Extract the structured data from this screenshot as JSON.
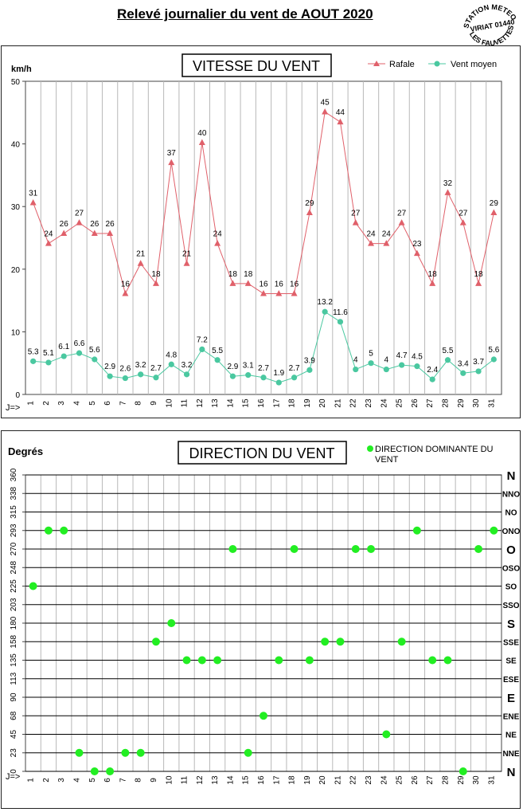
{
  "header": {
    "title": "Relevé journalier du vent de AOUT 2020",
    "stamp_lines": [
      "STATION METEO",
      "VIRIAT 01440",
      "LES FAUVETTES"
    ]
  },
  "chart_data": [
    {
      "type": "line",
      "title": "VITESSE DU VENT",
      "ylabel": "km/h",
      "xlabel": "J=>",
      "ylim": [
        0,
        50
      ],
      "yticks": [
        0,
        10,
        20,
        30,
        40,
        50
      ],
      "grid": true,
      "legend": "top-right",
      "categories": [
        1,
        2,
        3,
        4,
        5,
        6,
        7,
        8,
        9,
        10,
        11,
        12,
        13,
        14,
        15,
        16,
        17,
        18,
        19,
        20,
        21,
        22,
        23,
        24,
        25,
        26,
        27,
        28,
        29,
        30,
        31
      ],
      "series": [
        {
          "name": "Rafale",
          "color": "#e0606a",
          "marker": "triangle",
          "values": [
            30.6,
            24.1,
            25.7,
            27.4,
            25.7,
            25.7,
            16.1,
            20.9,
            17.7,
            37.0,
            20.9,
            40.2,
            24.1,
            17.7,
            17.7,
            16.1,
            16.1,
            16.1,
            29.0,
            45.1,
            43.5,
            27.4,
            24.1,
            24.1,
            27.4,
            22.5,
            17.7,
            32.2,
            27.4,
            17.7,
            29.0
          ],
          "labels": [
            "31",
            "24",
            "26",
            "27",
            "26",
            "26",
            "16",
            "21",
            "18",
            "37",
            "21",
            "40",
            "24",
            "18",
            "18",
            "16",
            "16",
            "16",
            "29",
            "45",
            "44",
            "27",
            "24",
            "24",
            "27",
            "23",
            "18",
            "32",
            "27",
            "18",
            "29"
          ]
        },
        {
          "name": "Vent moyen",
          "color": "#4ac8a0",
          "marker": "circle",
          "values": [
            5.3,
            5.1,
            6.1,
            6.6,
            5.6,
            2.9,
            2.6,
            3.2,
            2.7,
            4.8,
            3.2,
            7.2,
            5.5,
            2.9,
            3.1,
            2.7,
            1.9,
            2.7,
            3.9,
            13.2,
            11.6,
            4,
            5,
            4,
            4.7,
            4.5,
            2.4,
            5.5,
            3.4,
            3.7,
            5.6
          ],
          "labels": [
            "5.3",
            "5.1",
            "6.1",
            "6.6",
            "5.6",
            "2.9",
            "2.6",
            "3.2",
            "2.7",
            "4.8",
            "3.2",
            "7.2",
            "5.5",
            "2.9",
            "3.1",
            "2.7",
            "1.9",
            "2.7",
            "3.9",
            "13.2",
            "11.6",
            "4",
            "5",
            "4",
            "4.7",
            "4.5",
            "2.4",
            "5.5",
            "3.4",
            "3.7",
            "5.6"
          ]
        }
      ]
    },
    {
      "type": "scatter",
      "title": "DIRECTION DU VENT",
      "ylabel": "Degrés",
      "xlabel": "J=>",
      "ylim": [
        0,
        360
      ],
      "yticks": [
        "0",
        "23",
        "45",
        "68",
        "90",
        "113",
        "135",
        "158",
        "180",
        "203",
        "225",
        "248",
        "270",
        "293",
        "315",
        "338",
        "360"
      ],
      "ytick_values": [
        0,
        22.5,
        45,
        67.5,
        90,
        112.5,
        135,
        157.5,
        180,
        202.5,
        225,
        247.5,
        270,
        292.5,
        315,
        337.5,
        360
      ],
      "compass": [
        "N",
        "NNE",
        "NE",
        "ENE",
        "E",
        "ESE",
        "SE",
        "SSE",
        "S",
        "SSO",
        "SO",
        "OSO",
        "O",
        "ONO",
        "NO",
        "NNO",
        "N"
      ],
      "grid": true,
      "legend": "top-right",
      "categories": [
        1,
        2,
        3,
        4,
        5,
        6,
        7,
        8,
        9,
        10,
        11,
        12,
        13,
        14,
        15,
        16,
        17,
        18,
        19,
        20,
        21,
        22,
        23,
        24,
        25,
        26,
        27,
        28,
        29,
        30,
        31
      ],
      "series": [
        {
          "name": "DIRECTION DOMINANTE DU VENT",
          "color": "#22ee22",
          "values": [
            225,
            292.5,
            292.5,
            22.5,
            0,
            0,
            22.5,
            22.5,
            157.5,
            180,
            135,
            135,
            135,
            270,
            22.5,
            67.5,
            135,
            270,
            135,
            157.5,
            157.5,
            270,
            270,
            45,
            157.5,
            292.5,
            135,
            135,
            0,
            270,
            292.5
          ]
        }
      ]
    }
  ]
}
